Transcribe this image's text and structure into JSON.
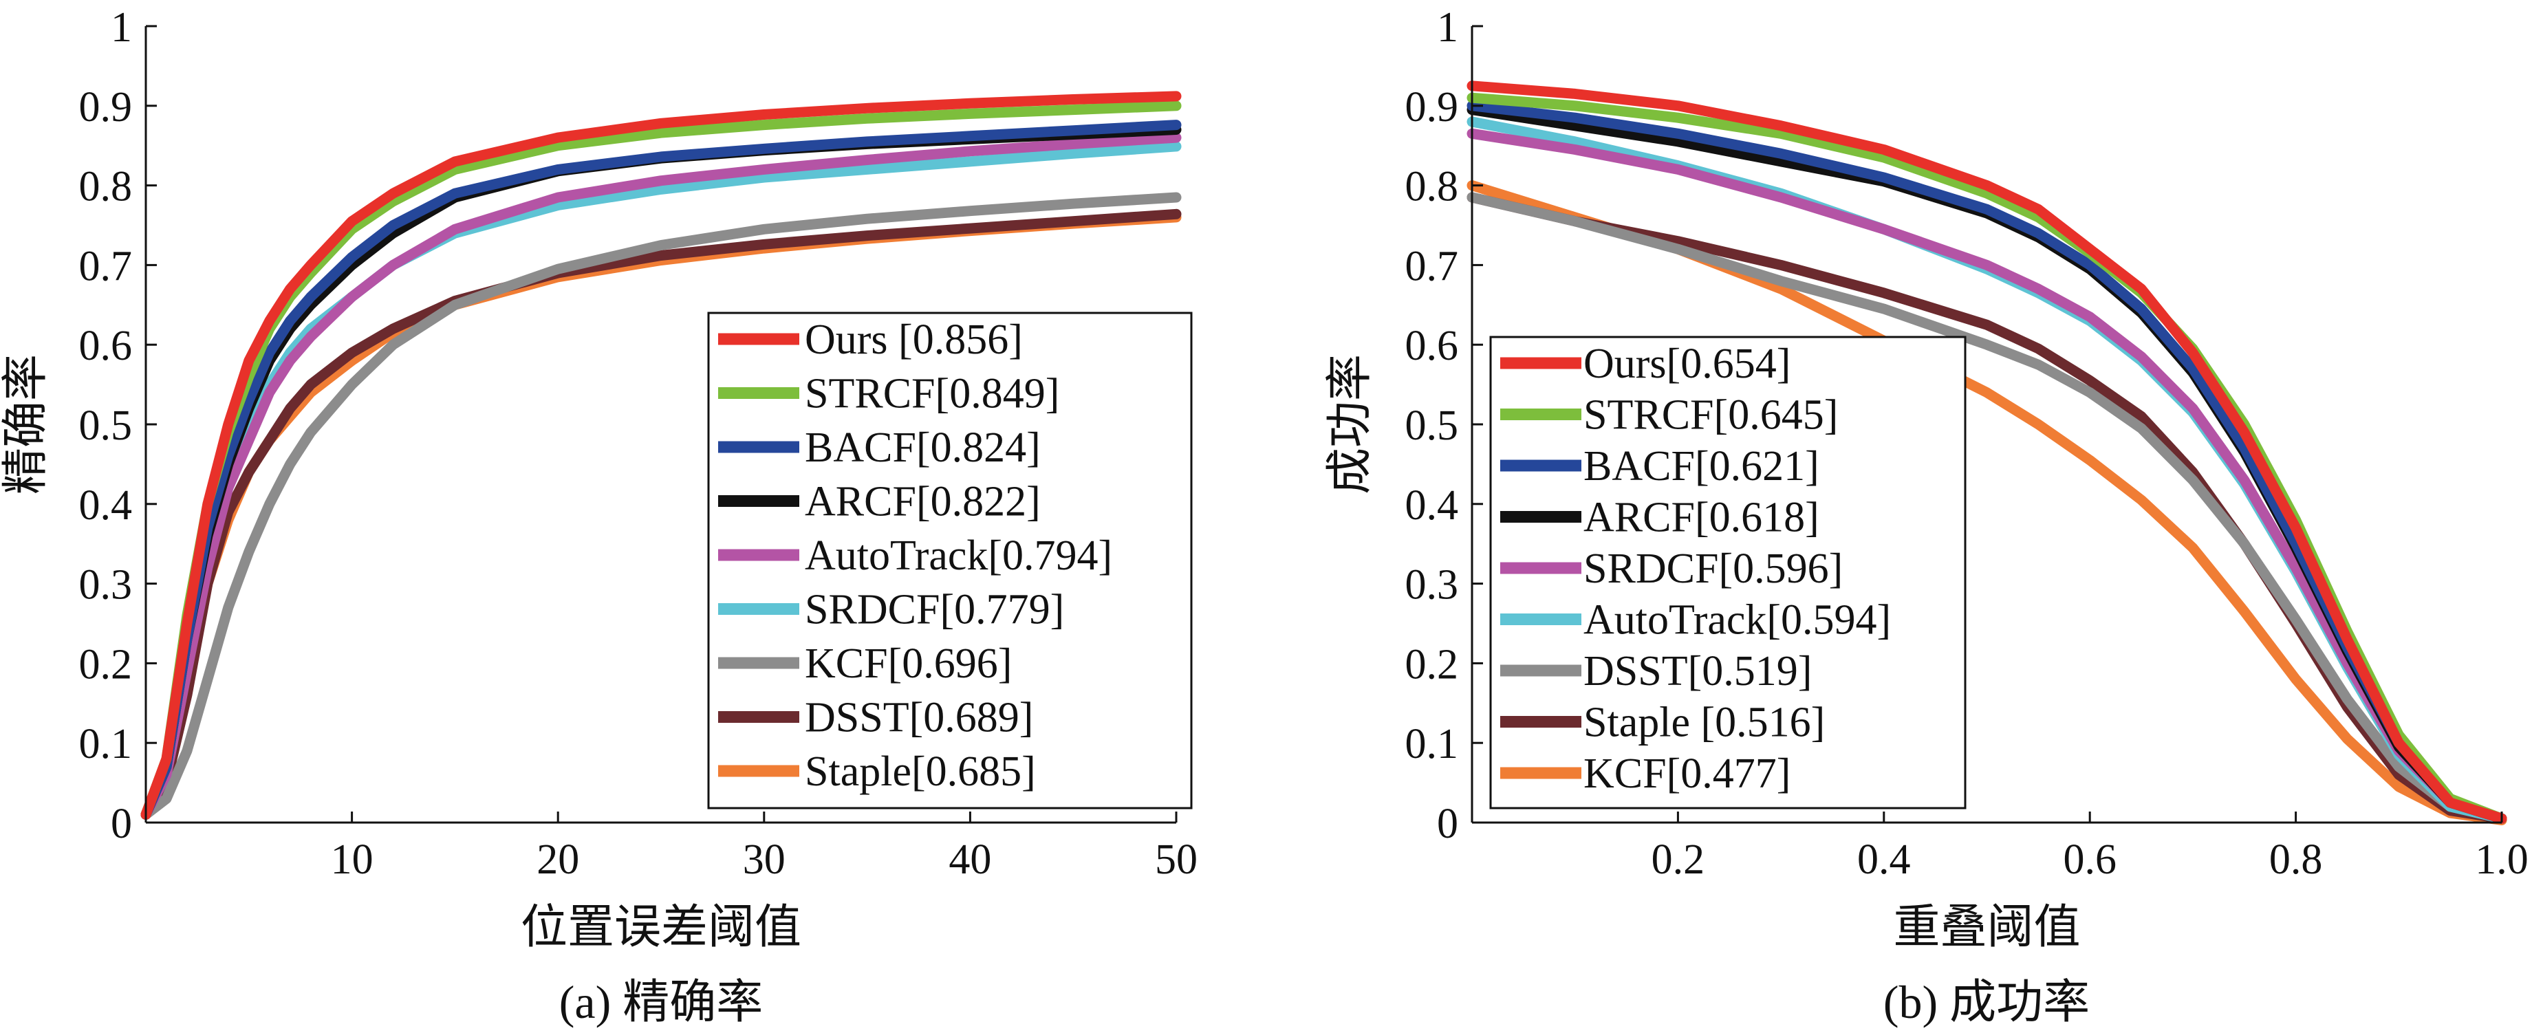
{
  "chart_data": [
    {
      "type": "line",
      "caption": "(a) 精确率",
      "xlabel": "位置误差阈值",
      "ylabel": "精确率",
      "xlim": [
        0,
        50
      ],
      "ylim": [
        0,
        1
      ],
      "xticks": [
        10,
        20,
        30,
        40,
        50
      ],
      "xtick_labels": [
        "10",
        "20",
        "30",
        "40",
        "50"
      ],
      "yticks": [
        0,
        0.1,
        0.2,
        0.3,
        0.4,
        0.5,
        0.6,
        0.7,
        0.8,
        0.9,
        1
      ],
      "ytick_labels": [
        "0",
        "0.1",
        "0.2",
        "0.3",
        "0.4",
        "0.5",
        "0.6",
        "0.7",
        "0.8",
        "0.9",
        "1"
      ],
      "legend_position": "lower-right",
      "grid": false,
      "series": [
        {
          "name": "Ours [0.856]",
          "color": "#e8312a",
          "x": [
            0,
            1,
            2,
            3,
            4,
            5,
            6,
            7,
            8,
            10,
            12,
            15,
            20,
            25,
            30,
            35,
            40,
            45,
            50
          ],
          "y": [
            0.01,
            0.08,
            0.25,
            0.4,
            0.5,
            0.58,
            0.63,
            0.67,
            0.7,
            0.755,
            0.79,
            0.83,
            0.86,
            0.878,
            0.889,
            0.897,
            0.903,
            0.908,
            0.912
          ]
        },
        {
          "name": "STRCF[0.849]",
          "color": "#7dbe3c",
          "x": [
            0,
            1,
            2,
            3,
            4,
            5,
            6,
            7,
            8,
            10,
            12,
            15,
            20,
            25,
            30,
            35,
            40,
            45,
            50
          ],
          "y": [
            0.01,
            0.08,
            0.26,
            0.4,
            0.49,
            0.56,
            0.62,
            0.66,
            0.69,
            0.745,
            0.78,
            0.82,
            0.85,
            0.866,
            0.876,
            0.884,
            0.89,
            0.895,
            0.9
          ]
        },
        {
          "name": "BACF[0.824]",
          "color": "#25479a",
          "x": [
            0,
            1,
            2,
            3,
            4,
            5,
            6,
            7,
            8,
            10,
            12,
            15,
            20,
            25,
            30,
            35,
            40,
            45,
            50
          ],
          "y": [
            0.01,
            0.07,
            0.23,
            0.37,
            0.46,
            0.53,
            0.59,
            0.63,
            0.66,
            0.71,
            0.75,
            0.79,
            0.82,
            0.836,
            0.846,
            0.855,
            0.862,
            0.869,
            0.876
          ]
        },
        {
          "name": "ARCF[0.822]",
          "color": "#111111",
          "x": [
            0,
            1,
            2,
            3,
            4,
            5,
            6,
            7,
            8,
            10,
            12,
            15,
            20,
            25,
            30,
            35,
            40,
            45,
            50
          ],
          "y": [
            0.01,
            0.07,
            0.23,
            0.36,
            0.45,
            0.52,
            0.58,
            0.62,
            0.65,
            0.7,
            0.74,
            0.785,
            0.818,
            0.834,
            0.844,
            0.852,
            0.858,
            0.864,
            0.87
          ]
        },
        {
          "name": "AutoTrack[0.794]",
          "color": "#b454a5",
          "x": [
            0,
            1,
            2,
            3,
            4,
            5,
            6,
            7,
            8,
            10,
            12,
            15,
            20,
            25,
            30,
            35,
            40,
            45,
            50
          ],
          "y": [
            0.01,
            0.06,
            0.19,
            0.32,
            0.42,
            0.48,
            0.54,
            0.58,
            0.61,
            0.66,
            0.7,
            0.745,
            0.785,
            0.806,
            0.82,
            0.832,
            0.843,
            0.852,
            0.86
          ]
        },
        {
          "name": "SRDCF[0.779]",
          "color": "#5ec3d4",
          "x": [
            0,
            1,
            2,
            3,
            4,
            5,
            6,
            7,
            8,
            10,
            12,
            15,
            20,
            25,
            30,
            35,
            40,
            45,
            50
          ],
          "y": [
            0.01,
            0.06,
            0.2,
            0.34,
            0.43,
            0.5,
            0.55,
            0.59,
            0.62,
            0.66,
            0.7,
            0.74,
            0.775,
            0.795,
            0.81,
            0.82,
            0.83,
            0.84,
            0.849
          ]
        },
        {
          "name": "KCF[0.696]",
          "color": "#8c8c8c",
          "x": [
            0,
            1,
            2,
            3,
            4,
            5,
            6,
            7,
            8,
            10,
            12,
            15,
            20,
            25,
            30,
            35,
            40,
            45,
            50
          ],
          "y": [
            0.01,
            0.03,
            0.09,
            0.18,
            0.27,
            0.34,
            0.4,
            0.45,
            0.49,
            0.55,
            0.6,
            0.65,
            0.695,
            0.725,
            0.745,
            0.758,
            0.768,
            0.777,
            0.785
          ]
        },
        {
          "name": "DSST[0.689]",
          "color": "#6b2a2e",
          "x": [
            0,
            1,
            2,
            3,
            4,
            5,
            6,
            7,
            8,
            10,
            12,
            15,
            20,
            25,
            30,
            35,
            40,
            45,
            50
          ],
          "y": [
            0.01,
            0.05,
            0.16,
            0.3,
            0.39,
            0.44,
            0.48,
            0.52,
            0.55,
            0.59,
            0.62,
            0.655,
            0.69,
            0.712,
            0.726,
            0.737,
            0.746,
            0.755,
            0.764
          ]
        },
        {
          "name": "Staple[0.685]",
          "color": "#f07d34",
          "x": [
            0,
            1,
            2,
            3,
            4,
            5,
            6,
            7,
            8,
            10,
            12,
            15,
            20,
            25,
            30,
            35,
            40,
            45,
            50
          ],
          "y": [
            0.01,
            0.05,
            0.17,
            0.3,
            0.38,
            0.44,
            0.48,
            0.51,
            0.54,
            0.58,
            0.615,
            0.65,
            0.685,
            0.706,
            0.721,
            0.733,
            0.743,
            0.752,
            0.76
          ]
        }
      ]
    },
    {
      "type": "line",
      "caption": "(b) 成功率",
      "xlabel": "重叠阈值",
      "ylabel": "成功率",
      "xlim": [
        0,
        1
      ],
      "ylim": [
        0,
        1
      ],
      "xticks": [
        0.2,
        0.4,
        0.6,
        0.8,
        1.0
      ],
      "xtick_labels": [
        "0.2",
        "0.4",
        "0.6",
        "0.8",
        "1.0"
      ],
      "yticks": [
        0,
        0.1,
        0.2,
        0.3,
        0.4,
        0.5,
        0.6,
        0.7,
        0.8,
        0.9,
        1
      ],
      "ytick_labels": [
        "0",
        "0.1",
        "0.2",
        "0.3",
        "0.4",
        "0.5",
        "0.6",
        "0.7",
        "0.8",
        "0.9",
        "1"
      ],
      "legend_position": "lower-left",
      "grid": false,
      "series": [
        {
          "name": "Ours[0.654]",
          "color": "#e8312a",
          "x": [
            0,
            0.1,
            0.2,
            0.3,
            0.4,
            0.5,
            0.55,
            0.6,
            0.65,
            0.7,
            0.75,
            0.8,
            0.85,
            0.9,
            0.95,
            1.0
          ],
          "y": [
            0.925,
            0.915,
            0.9,
            0.875,
            0.845,
            0.8,
            0.77,
            0.72,
            0.67,
            0.59,
            0.49,
            0.37,
            0.23,
            0.1,
            0.025,
            0.005
          ]
        },
        {
          "name": "STRCF[0.645]",
          "color": "#7dbe3c",
          "x": [
            0,
            0.1,
            0.2,
            0.3,
            0.4,
            0.5,
            0.55,
            0.6,
            0.65,
            0.7,
            0.75,
            0.8,
            0.85,
            0.9,
            0.95,
            1.0
          ],
          "y": [
            0.91,
            0.9,
            0.885,
            0.865,
            0.835,
            0.79,
            0.76,
            0.715,
            0.665,
            0.595,
            0.5,
            0.38,
            0.24,
            0.11,
            0.03,
            0.005
          ]
        },
        {
          "name": "BACF[0.621]",
          "color": "#25479a",
          "x": [
            0,
            0.1,
            0.2,
            0.3,
            0.4,
            0.5,
            0.55,
            0.6,
            0.65,
            0.7,
            0.75,
            0.8,
            0.85,
            0.9,
            0.95,
            1.0
          ],
          "y": [
            0.9,
            0.885,
            0.865,
            0.84,
            0.81,
            0.77,
            0.74,
            0.7,
            0.645,
            0.57,
            0.47,
            0.35,
            0.22,
            0.1,
            0.025,
            0.005
          ]
        },
        {
          "name": "ARCF[0.618]",
          "color": "#111111",
          "x": [
            0,
            0.1,
            0.2,
            0.3,
            0.4,
            0.5,
            0.55,
            0.6,
            0.65,
            0.7,
            0.75,
            0.8,
            0.85,
            0.9,
            0.95,
            1.0
          ],
          "y": [
            0.895,
            0.875,
            0.855,
            0.83,
            0.805,
            0.765,
            0.735,
            0.695,
            0.64,
            0.565,
            0.465,
            0.345,
            0.215,
            0.095,
            0.025,
            0.005
          ]
        },
        {
          "name": "SRDCF[0.596]",
          "color": "#b454a5",
          "x": [
            0,
            0.1,
            0.2,
            0.3,
            0.4,
            0.5,
            0.55,
            0.6,
            0.65,
            0.7,
            0.75,
            0.8,
            0.85,
            0.9,
            0.95,
            1.0
          ],
          "y": [
            0.865,
            0.845,
            0.82,
            0.785,
            0.745,
            0.7,
            0.67,
            0.635,
            0.585,
            0.52,
            0.43,
            0.32,
            0.2,
            0.09,
            0.025,
            0.005
          ]
        },
        {
          "name": "AutoTrack[0.594]",
          "color": "#5ec3d4",
          "x": [
            0,
            0.1,
            0.2,
            0.3,
            0.4,
            0.5,
            0.55,
            0.6,
            0.65,
            0.7,
            0.75,
            0.8,
            0.85,
            0.9,
            0.95,
            1.0
          ],
          "y": [
            0.88,
            0.855,
            0.825,
            0.79,
            0.745,
            0.695,
            0.665,
            0.63,
            0.58,
            0.515,
            0.425,
            0.315,
            0.195,
            0.085,
            0.02,
            0.005
          ]
        },
        {
          "name": "DSST[0.519]",
          "color": "#8c8c8c",
          "x": [
            0,
            0.1,
            0.2,
            0.3,
            0.4,
            0.5,
            0.55,
            0.6,
            0.65,
            0.7,
            0.75,
            0.8,
            0.85,
            0.9,
            0.95,
            1.0
          ],
          "y": [
            0.785,
            0.755,
            0.72,
            0.68,
            0.645,
            0.6,
            0.575,
            0.54,
            0.495,
            0.43,
            0.35,
            0.255,
            0.155,
            0.07,
            0.02,
            0.005
          ]
        },
        {
          "name": "Staple [0.516]",
          "color": "#6b2a2e",
          "x": [
            0,
            0.1,
            0.2,
            0.3,
            0.4,
            0.5,
            0.55,
            0.6,
            0.65,
            0.7,
            0.75,
            0.8,
            0.85,
            0.9,
            0.95,
            1.0
          ],
          "y": [
            0.785,
            0.755,
            0.73,
            0.7,
            0.665,
            0.625,
            0.595,
            0.555,
            0.51,
            0.44,
            0.35,
            0.25,
            0.145,
            0.06,
            0.015,
            0.005
          ]
        },
        {
          "name": "KCF[0.477]",
          "color": "#f07d34",
          "x": [
            0,
            0.1,
            0.2,
            0.3,
            0.4,
            0.5,
            0.55,
            0.6,
            0.65,
            0.7,
            0.75,
            0.8,
            0.85,
            0.9,
            0.95,
            1.0
          ],
          "y": [
            0.8,
            0.76,
            0.72,
            0.67,
            0.605,
            0.54,
            0.5,
            0.455,
            0.405,
            0.345,
            0.265,
            0.18,
            0.105,
            0.045,
            0.012,
            0.003
          ]
        }
      ]
    }
  ]
}
